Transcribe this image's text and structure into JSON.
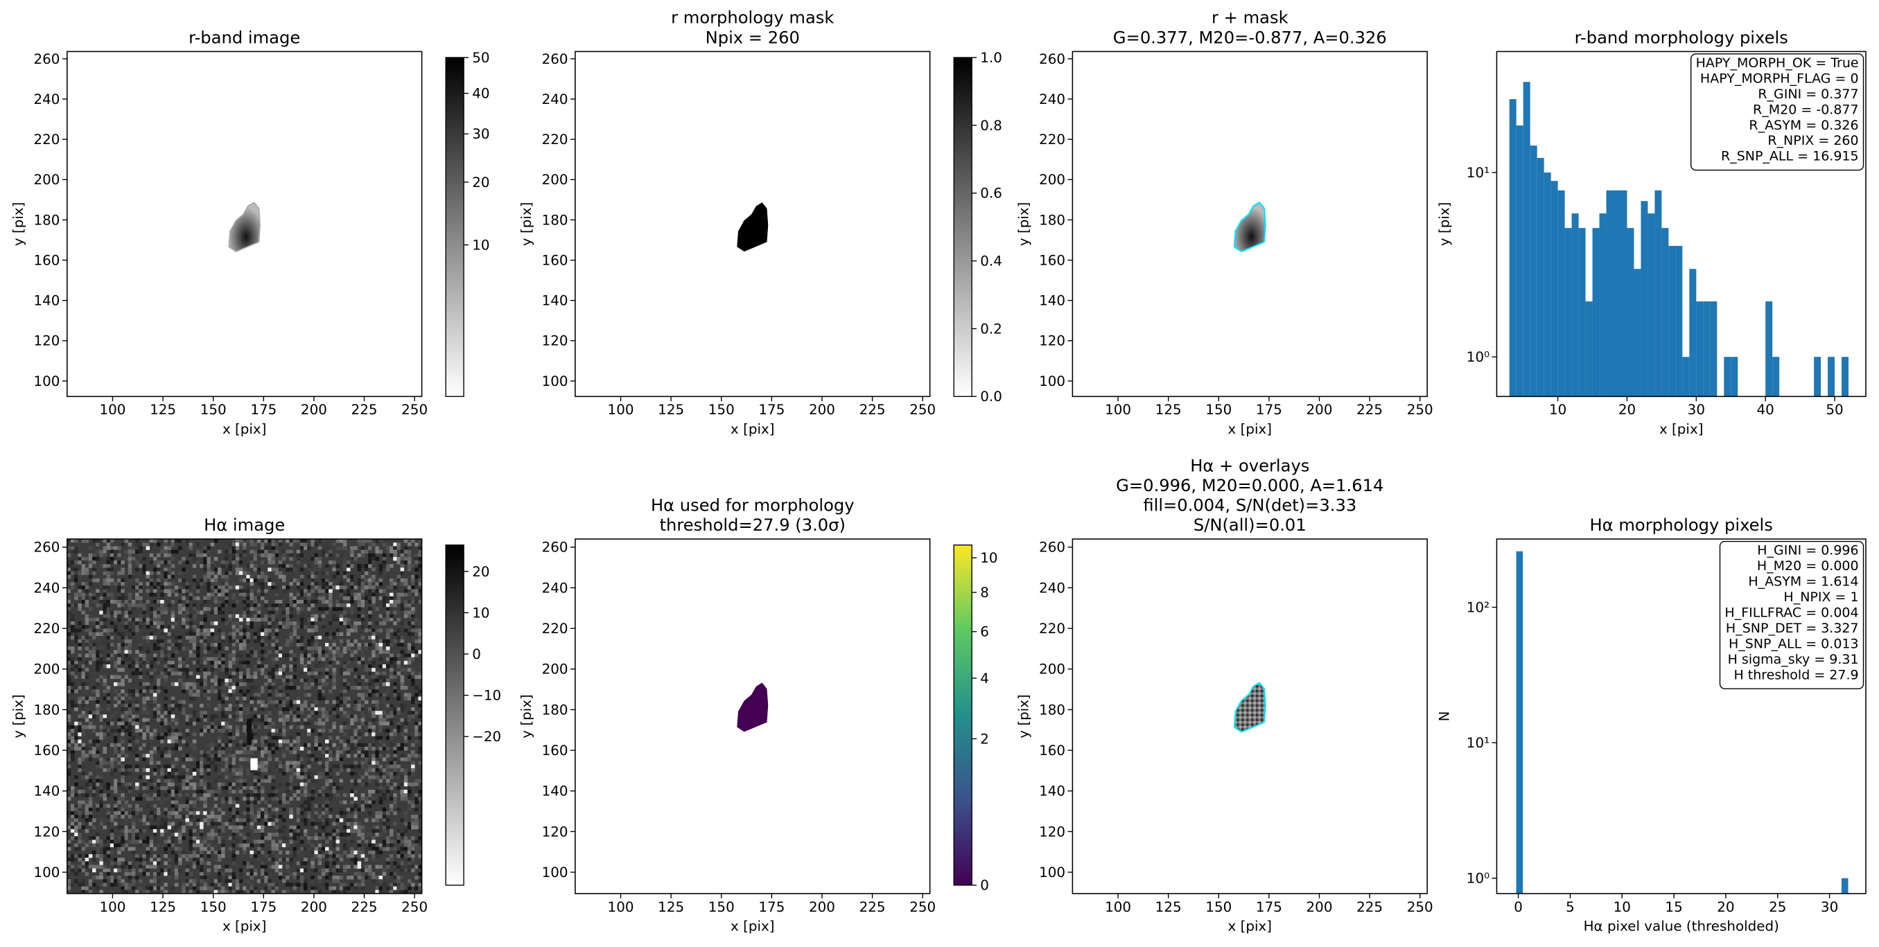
{
  "chart_data": [
    {
      "type": "image",
      "title": [
        "r-band image"
      ],
      "xlabel": "x [pix]",
      "ylabel": "y [pix]",
      "xlim": [
        77.4,
        253.6
      ],
      "ylim": [
        92.3,
        263.6
      ],
      "xticks": [
        100,
        125,
        150,
        175,
        200,
        225,
        250
      ],
      "yticks": [
        100,
        120,
        140,
        160,
        180,
        200,
        220,
        240,
        260
      ],
      "colorbar": {
        "colormap": "gray_r",
        "scale": "sqrt",
        "lim": [
          0,
          50
        ],
        "ticks": [
          10,
          20,
          30,
          40,
          50
        ]
      }
    },
    {
      "type": "image",
      "title": [
        "r morphology mask",
        "Npix = 260"
      ],
      "xlabel": "x [pix]",
      "ylabel": "y [pix]",
      "xlim": [
        77.4,
        253.6
      ],
      "ylim": [
        92.3,
        263.6
      ],
      "xticks": [
        100,
        125,
        150,
        175,
        200,
        225,
        250
      ],
      "yticks": [
        100,
        120,
        140,
        160,
        180,
        200,
        220,
        240,
        260
      ],
      "colorbar": {
        "colormap": "gray_r",
        "scale": "linear",
        "lim": [
          0,
          1
        ],
        "ticks": [
          {
            "value": 0,
            "label": "0.0"
          },
          0.2,
          0.4,
          0.6,
          0.8,
          {
            "value": 1,
            "label": "1.0"
          }
        ]
      }
    },
    {
      "type": "image",
      "title": [
        "r + mask",
        "G=0.377, M20=-0.877, A=0.326"
      ],
      "xlabel": "x [pix]",
      "ylabel": "y [pix]",
      "xlim": [
        77.4,
        253.6
      ],
      "ylim": [
        92.3,
        263.6
      ],
      "xticks": [
        100,
        125,
        150,
        175,
        200,
        225,
        250
      ],
      "yticks": [
        100,
        120,
        140,
        160,
        180,
        200,
        220,
        240,
        260
      ]
    },
    {
      "type": "histogram",
      "title": [
        "r-band morphology pixels"
      ],
      "xlabel": "x [pix]",
      "ylabel": "y [pix]",
      "color": "#1f77b4",
      "log_y": true,
      "xlim": [
        1.17,
        54.5
      ],
      "ylim": [
        0.61,
        45.3
      ],
      "xticks": [
        10,
        20,
        30,
        40,
        50
      ],
      "yticks": [
        {
          "value": 1,
          "label": "10⁰"
        },
        {
          "value": 10,
          "label": "10¹"
        }
      ],
      "bins": [
        3,
        4,
        5,
        6,
        7,
        8,
        9,
        10,
        11,
        12,
        13,
        14,
        15,
        16,
        17,
        18,
        19,
        20,
        21,
        22,
        23,
        24,
        25,
        26,
        27,
        28,
        29,
        30,
        31,
        32,
        33,
        34,
        35,
        36,
        37,
        38,
        39,
        40,
        41,
        42,
        43,
        44,
        45,
        46,
        47,
        48,
        49,
        50,
        51,
        52
      ],
      "counts": [
        25,
        18,
        31,
        14,
        12,
        10,
        9,
        8,
        5,
        6,
        5,
        2,
        5,
        6,
        8,
        8,
        8,
        5,
        3,
        7,
        6,
        8,
        5,
        4,
        4,
        1,
        3,
        2,
        2,
        2,
        0,
        1,
        1,
        0,
        0,
        0,
        0,
        2,
        1,
        0,
        0,
        0,
        0,
        0,
        1,
        0,
        1,
        0,
        1
      ],
      "stats": [
        "HAPY_MORPH_OK = True",
        "HAPY_MORPH_FLAG = 0",
        "R_GINI = 0.377",
        "R_M20 = -0.877",
        "R_ASYM = 0.326",
        "R_NPIX = 260",
        "R_SNP_ALL = 16.915"
      ]
    },
    {
      "type": "image",
      "title": [
        "Hα image"
      ],
      "xlabel": "x [pix]",
      "ylabel": "y [pix]",
      "xlim": [
        77.4,
        253.6
      ],
      "ylim": [
        89.5,
        264
      ],
      "xticks": [
        100,
        125,
        150,
        175,
        200,
        225,
        250
      ],
      "yticks": [
        100,
        120,
        140,
        160,
        180,
        200,
        220,
        240,
        260
      ],
      "colorbar": {
        "colormap": "gray_r",
        "scale": "linear",
        "lim": [
          -56,
          26.4
        ],
        "ticks": [
          {
            "value": -20,
            "label": "−20"
          },
          {
            "value": -10,
            "label": "−10"
          },
          0,
          10,
          20
        ]
      }
    },
    {
      "type": "image",
      "title": [
        "Hα used for morphology",
        "threshold=27.9 (3.0σ)"
      ],
      "xlabel": "x [pix]",
      "ylabel": "y [pix]",
      "xlim": [
        77.4,
        253.6
      ],
      "ylim": [
        89.5,
        264
      ],
      "xticks": [
        100,
        125,
        150,
        175,
        200,
        225,
        250
      ],
      "yticks": [
        100,
        120,
        140,
        160,
        180,
        200,
        220,
        240,
        260
      ],
      "colorbar": {
        "colormap": "viridis",
        "scale": "sqrt",
        "lim": [
          0,
          10.8
        ],
        "ticks": [
          0,
          2,
          4,
          6,
          8,
          10
        ]
      }
    },
    {
      "type": "image",
      "title": [
        "Hα + overlays",
        "G=0.996, M20=0.000, A=1.614",
        "fill=0.004, S/N(det)=3.33",
        "S/N(all)=0.01"
      ],
      "xlabel": "x [pix]",
      "ylabel": "y [pix]",
      "xlim": [
        77.4,
        253.6
      ],
      "ylim": [
        89.5,
        264
      ],
      "xticks": [
        100,
        125,
        150,
        175,
        200,
        225,
        250
      ],
      "yticks": [
        100,
        120,
        140,
        160,
        180,
        200,
        220,
        240,
        260
      ]
    },
    {
      "type": "histogram",
      "title": [
        "Hα morphology pixels"
      ],
      "xlabel": "Hα pixel value (thresholded)",
      "ylabel": "N",
      "color": "#1f77b4",
      "log_y": true,
      "xlim": [
        -2.08,
        33.5
      ],
      "ylim": [
        0.77,
        319
      ],
      "xticks": [
        0,
        5,
        10,
        15,
        20,
        25,
        30
      ],
      "yticks": [
        {
          "value": 1,
          "label": "10⁰"
        },
        {
          "value": 10,
          "label": "10¹"
        },
        {
          "value": 100,
          "label": "10²"
        }
      ],
      "bins": [
        -0.2,
        0.44,
        1.08,
        1.72,
        2.36,
        3.0,
        3.64,
        4.28,
        4.92,
        5.56,
        6.2,
        6.84,
        7.48,
        8.12,
        8.76,
        9.4,
        10.04,
        10.68,
        11.32,
        11.96,
        12.6,
        13.24,
        13.88,
        14.52,
        15.16,
        15.8,
        16.44,
        17.08,
        17.72,
        18.36,
        19.0,
        19.64,
        20.28,
        20.92,
        21.56,
        22.2,
        22.84,
        23.48,
        24.12,
        24.76,
        25.4,
        26.04,
        26.68,
        27.32,
        27.96,
        28.6,
        29.24,
        29.88,
        30.52,
        31.16,
        31.8
      ],
      "counts": [
        259,
        0,
        0,
        0,
        0,
        0,
        0,
        0,
        0,
        0,
        0,
        0,
        0,
        0,
        0,
        0,
        0,
        0,
        0,
        0,
        0,
        0,
        0,
        0,
        0,
        0,
        0,
        0,
        0,
        0,
        0,
        0,
        0,
        0,
        0,
        0,
        0,
        0,
        0,
        0,
        0,
        0,
        0,
        0,
        0,
        0,
        0,
        0,
        0,
        1
      ],
      "stats": [
        "H_GINI = 0.996",
        "H_M20 = 0.000",
        "H_ASYM = 1.614",
        "H_NPIX = 1",
        "H_FILLFRAC = 0.004",
        "H_SNP_DET = 3.327",
        "H_SNP_ALL = 0.013",
        "H sigma_sky = 9.31",
        "H threshold = 27.9"
      ]
    }
  ]
}
